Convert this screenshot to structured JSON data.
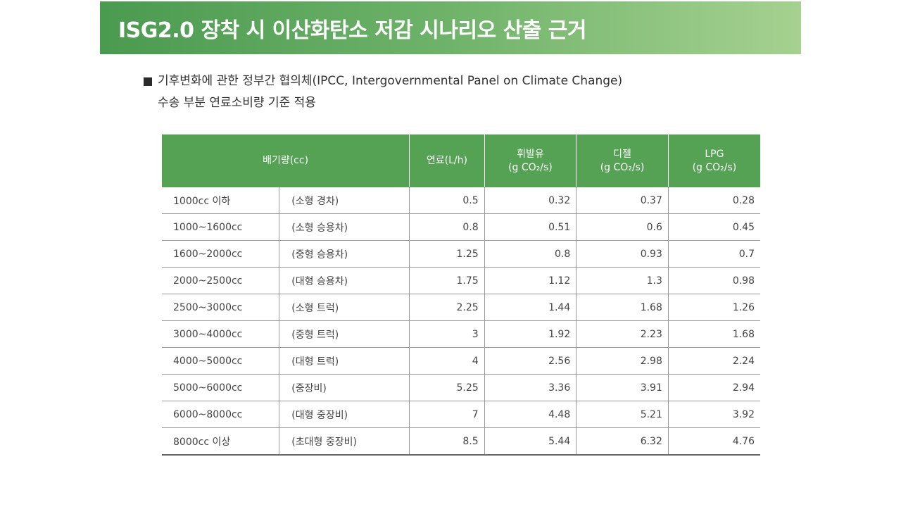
{
  "title": "ISG2.0 장착 시 이산화탄소 저감 시나리오 산출 근거",
  "note": {
    "line1": "기후변화에 관한 정부간 협의체(IPCC, Intergovernmental Panel on Climate Change)",
    "line2": "수송 부분 연료소비량 기준 적용"
  },
  "table": {
    "headers": {
      "displacement": "배기량(cc)",
      "fuel": "연료(L/h)",
      "gasoline_name": "휘발유",
      "diesel_name": "디젤",
      "lpg_name": "LPG",
      "unit": "(g CO₂/s)"
    },
    "rows": [
      {
        "displacement": "1000cc 이하",
        "type": "(소형 경차)",
        "fuel": "0.5",
        "gasoline": "0.32",
        "diesel": "0.37",
        "lpg": "0.28"
      },
      {
        "displacement": "1000~1600cc",
        "type": "(소형 승용차)",
        "fuel": "0.8",
        "gasoline": "0.51",
        "diesel": "0.6",
        "lpg": "0.45"
      },
      {
        "displacement": "1600~2000cc",
        "type": "(중형 승용차)",
        "fuel": "1.25",
        "gasoline": "0.8",
        "diesel": "0.93",
        "lpg": "0.7"
      },
      {
        "displacement": "2000~2500cc",
        "type": "(대형 승용차)",
        "fuel": "1.75",
        "gasoline": "1.12",
        "diesel": "1.3",
        "lpg": "0.98"
      },
      {
        "displacement": "2500~3000cc",
        "type": "(소형 트럭)",
        "fuel": "2.25",
        "gasoline": "1.44",
        "diesel": "1.68",
        "lpg": "1.26"
      },
      {
        "displacement": "3000~4000cc",
        "type": "(중형 트럭)",
        "fuel": "3",
        "gasoline": "1.92",
        "diesel": "2.23",
        "lpg": "1.68"
      },
      {
        "displacement": "4000~5000cc",
        "type": "(대형 트럭)",
        "fuel": "4",
        "gasoline": "2.56",
        "diesel": "2.98",
        "lpg": "2.24"
      },
      {
        "displacement": "5000~6000cc",
        "type": "(중장비)",
        "fuel": "5.25",
        "gasoline": "3.36",
        "diesel": "3.91",
        "lpg": "2.94"
      },
      {
        "displacement": "6000~8000cc",
        "type": "(대형 중장비)",
        "fuel": "7",
        "gasoline": "4.48",
        "diesel": "5.21",
        "lpg": "3.92"
      },
      {
        "displacement": "8000cc 이상",
        "type": "(초대형 중장비)",
        "fuel": "8.5",
        "gasoline": "5.44",
        "diesel": "6.32",
        "lpg": "4.76"
      }
    ]
  },
  "colors": {
    "header_green": "#55a255",
    "title_gradient_start": "#4a9a50",
    "title_gradient_end": "#a6d190"
  }
}
